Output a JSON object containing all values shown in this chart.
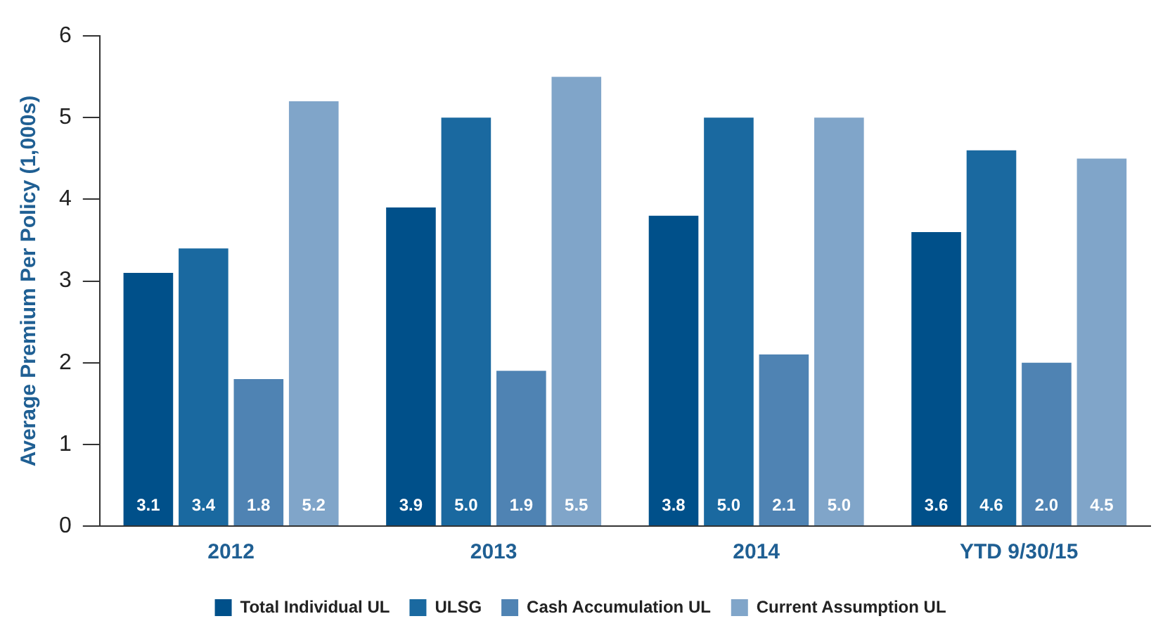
{
  "chart_data": {
    "type": "bar",
    "ylabel": "Average Premium Per Policy (1,000s)",
    "categories": [
      "2012",
      "2013",
      "2014",
      "YTD 9/30/15"
    ],
    "series": [
      {
        "name": "Total Individual UL",
        "color": "#00508a",
        "values": [
          3.1,
          3.9,
          3.8,
          3.6
        ],
        "value_labels": [
          "3.1",
          "3.9",
          "3.8",
          "3.6"
        ]
      },
      {
        "name": "ULSG",
        "color": "#1a69a0",
        "values": [
          3.4,
          5.0,
          5.0,
          4.6
        ],
        "value_labels": [
          "3.4",
          "5.0",
          "5.0",
          "4.6"
        ]
      },
      {
        "name": "Cash Accumulation UL",
        "color": "#4f83b3",
        "values": [
          1.8,
          1.9,
          2.1,
          2.0
        ],
        "value_labels": [
          "1.8",
          "1.9",
          "2.1",
          "2.0"
        ]
      },
      {
        "name": "Current Assumption UL",
        "color": "#80a5c9",
        "values": [
          5.2,
          5.5,
          5.0,
          4.5
        ],
        "value_labels": [
          "5.2",
          "5.5",
          "5.0",
          "4.5"
        ]
      }
    ],
    "ylim": [
      0,
      6
    ],
    "yticks": [
      0,
      1,
      2,
      3,
      4,
      5,
      6
    ],
    "grid": false,
    "legend": "bottom"
  }
}
